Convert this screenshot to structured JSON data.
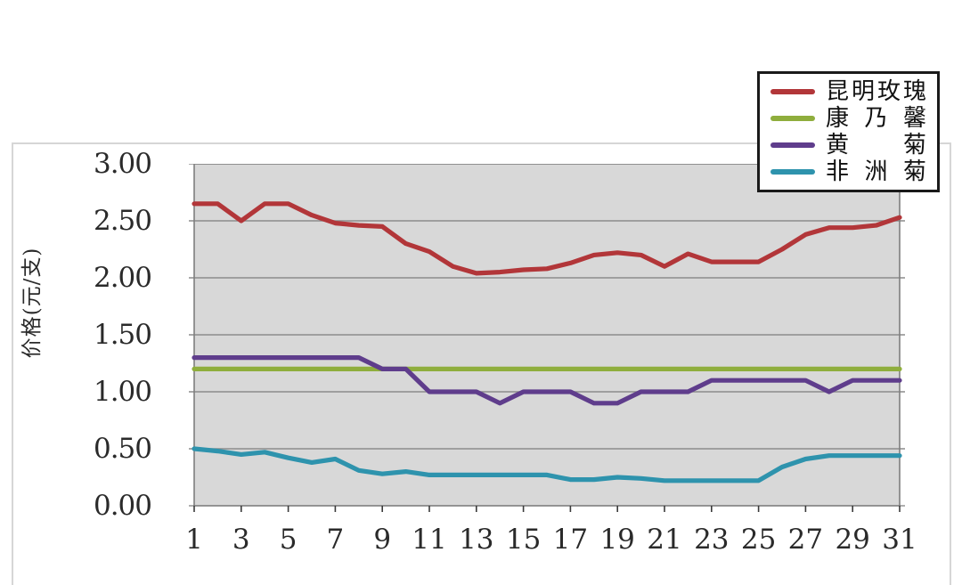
{
  "page": {
    "background": "#ffffff"
  },
  "chart_data": {
    "type": "line",
    "title": "",
    "ylabel": "价格(元/支)",
    "xlabel": "",
    "ylim": [
      0,
      3
    ],
    "ytick_step": 0.5,
    "y_tick_labels": [
      "3.00",
      "2.50",
      "2.00",
      "1.50",
      "1.00",
      "0.50",
      "0.00"
    ],
    "x": [
      1,
      2,
      3,
      4,
      5,
      6,
      7,
      8,
      9,
      10,
      11,
      12,
      13,
      14,
      15,
      16,
      17,
      18,
      19,
      20,
      21,
      22,
      23,
      24,
      25,
      26,
      27,
      28,
      29,
      30,
      31
    ],
    "x_tick_labels": [
      "1",
      "3",
      "5",
      "7",
      "9",
      "11",
      "13",
      "15",
      "17",
      "19",
      "21",
      "23",
      "25",
      "27",
      "29",
      "31"
    ],
    "grid": "horizontal",
    "plot_background": "#d8d8d8",
    "gridline_color": "#8c8c8c",
    "plot_border_color": "#7f7f7f",
    "tick_color": "#3a3a3a",
    "legend_position": "top-right",
    "legend_border_color": "#1a1a1a",
    "series": [
      {
        "name": "昆明玫瑰",
        "color": "#b23639",
        "values": [
          2.65,
          2.65,
          2.5,
          2.65,
          2.65,
          2.55,
          2.48,
          2.46,
          2.45,
          2.3,
          2.23,
          2.1,
          2.04,
          2.05,
          2.07,
          2.08,
          2.13,
          2.2,
          2.22,
          2.2,
          2.1,
          2.21,
          2.14,
          2.14,
          2.14,
          2.25,
          2.38,
          2.44,
          2.44,
          2.46,
          2.53
        ]
      },
      {
        "name": "康乃馨",
        "color": "#8fae3d",
        "values": [
          1.2,
          1.2,
          1.2,
          1.2,
          1.2,
          1.2,
          1.2,
          1.2,
          1.2,
          1.2,
          1.2,
          1.2,
          1.2,
          1.2,
          1.2,
          1.2,
          1.2,
          1.2,
          1.2,
          1.2,
          1.2,
          1.2,
          1.2,
          1.2,
          1.2,
          1.2,
          1.2,
          1.2,
          1.2,
          1.2,
          1.2
        ]
      },
      {
        "name": "黄菊",
        "color": "#5f3d8c",
        "values": [
          1.3,
          1.3,
          1.3,
          1.3,
          1.3,
          1.3,
          1.3,
          1.3,
          1.2,
          1.2,
          1.0,
          1.0,
          1.0,
          0.9,
          1.0,
          1.0,
          1.0,
          0.9,
          0.9,
          1.0,
          1.0,
          1.0,
          1.1,
          1.1,
          1.1,
          1.1,
          1.1,
          1.0,
          1.1,
          1.1,
          1.1
        ]
      },
      {
        "name": "非洲菊",
        "color": "#2e93ad",
        "values": [
          0.5,
          0.48,
          0.45,
          0.47,
          0.42,
          0.38,
          0.41,
          0.31,
          0.28,
          0.3,
          0.27,
          0.27,
          0.27,
          0.27,
          0.27,
          0.27,
          0.23,
          0.23,
          0.25,
          0.24,
          0.22,
          0.22,
          0.22,
          0.22,
          0.22,
          0.34,
          0.41,
          0.44,
          0.44,
          0.44,
          0.44
        ]
      }
    ]
  }
}
